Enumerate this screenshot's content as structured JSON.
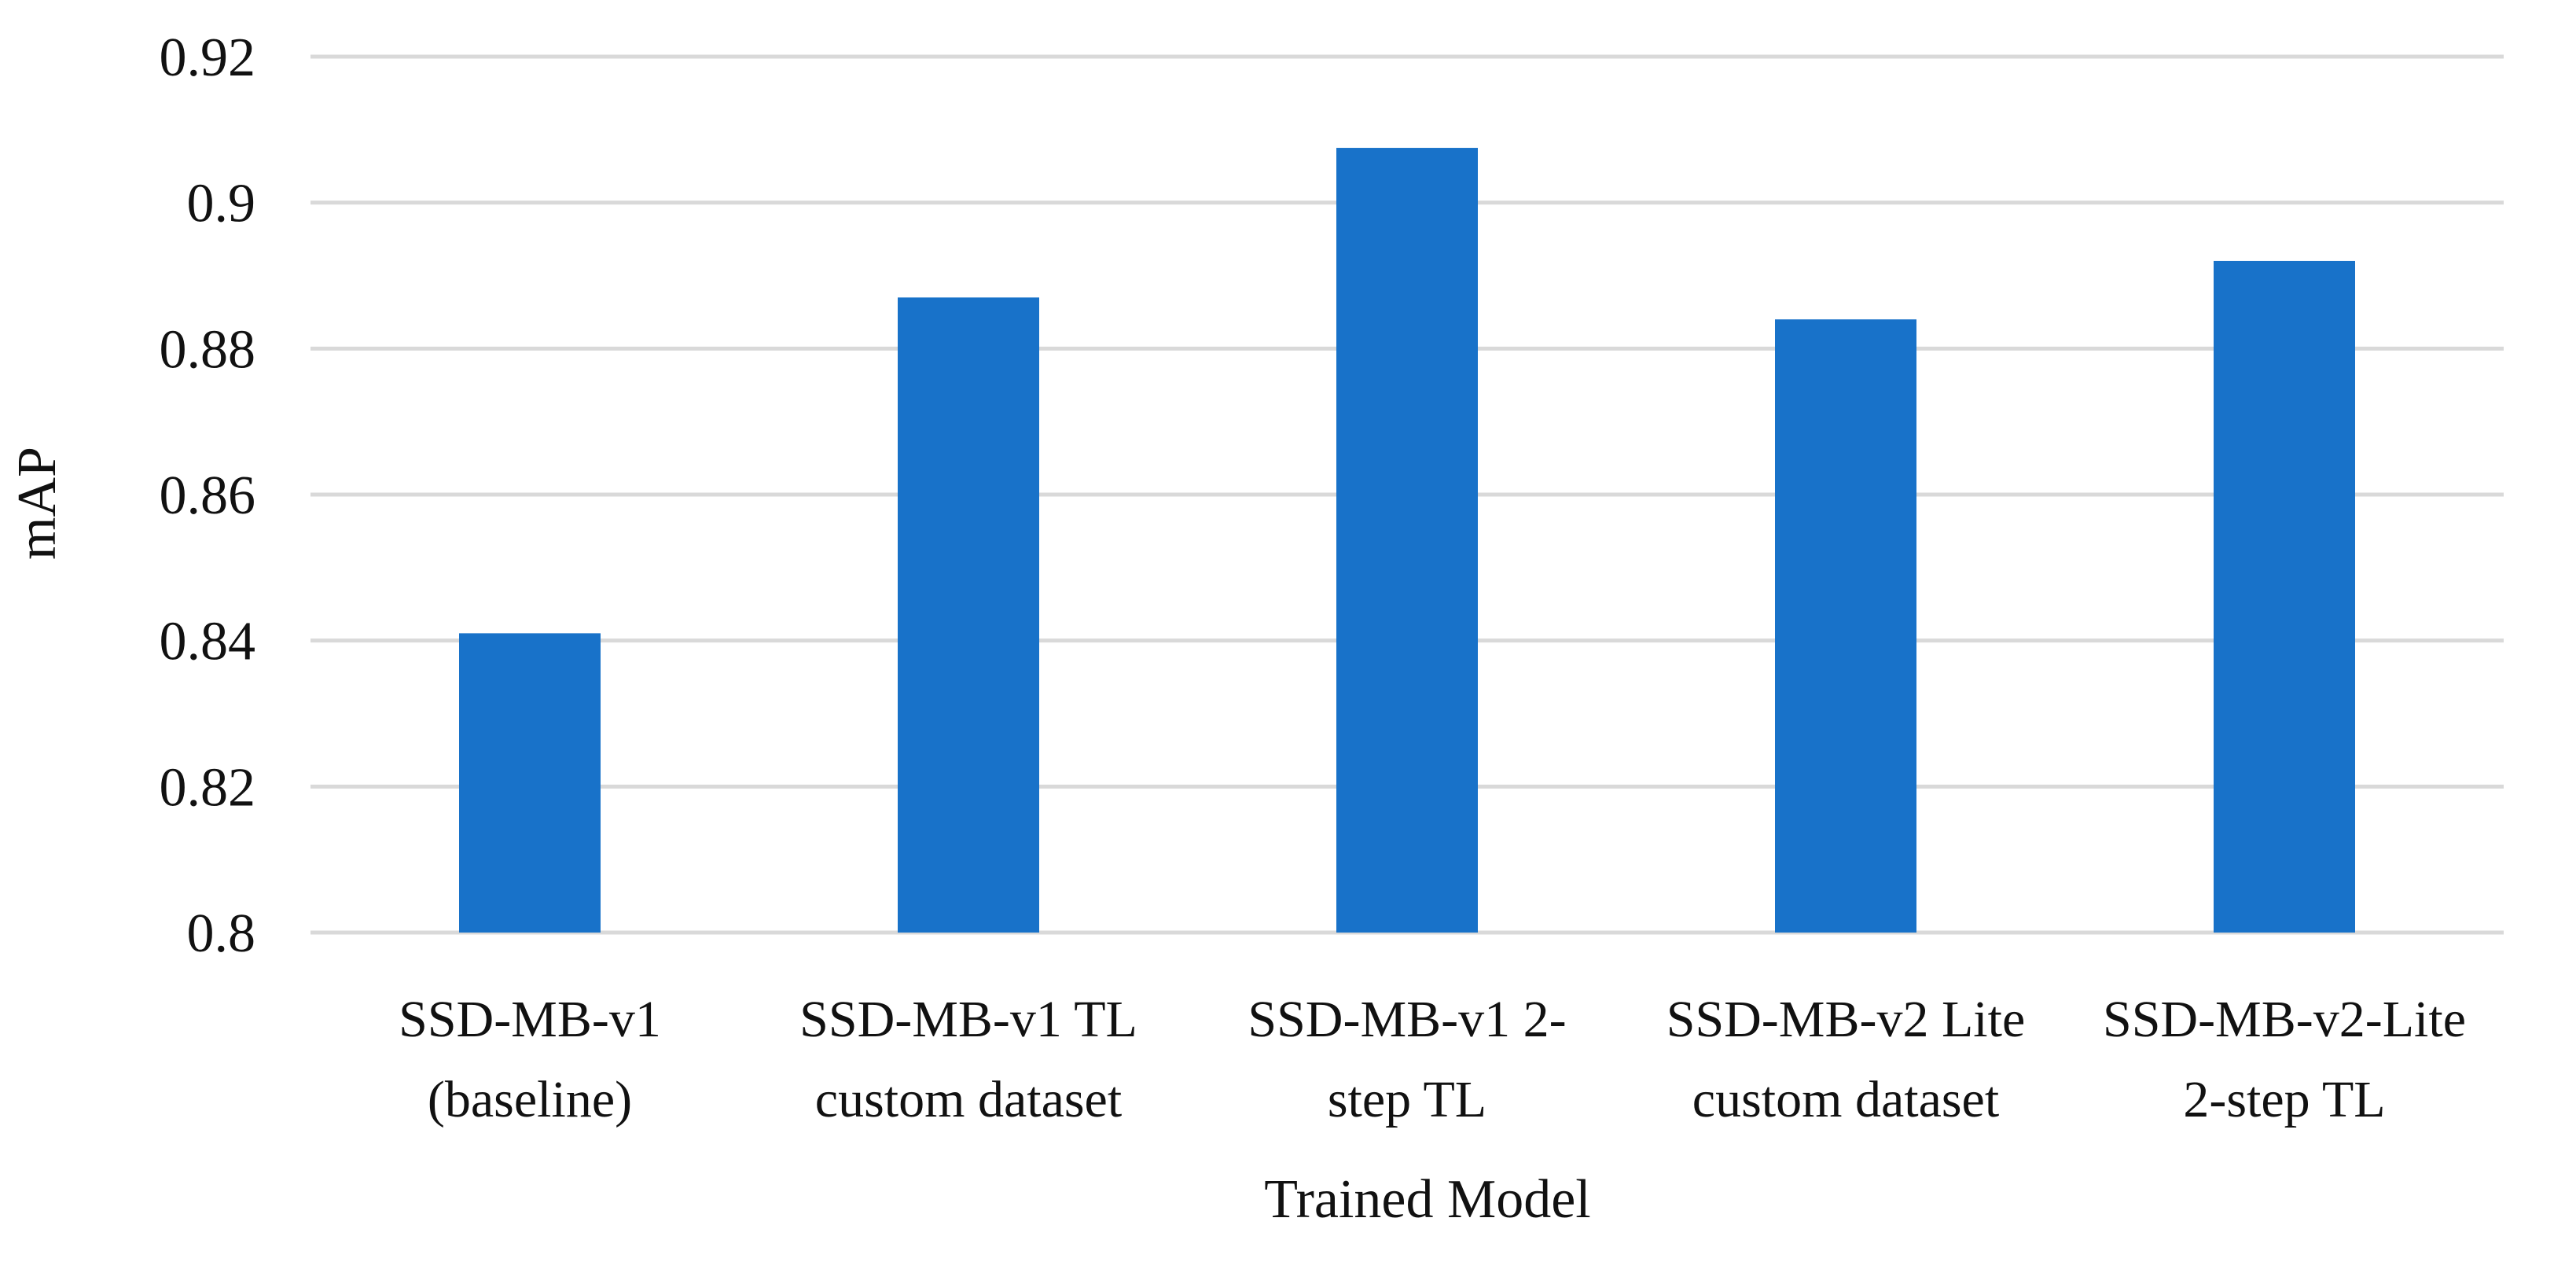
{
  "chart_data": {
    "type": "bar",
    "title": "",
    "xlabel": "Trained Model",
    "ylabel": "mAP",
    "ylim": [
      0.8,
      0.92
    ],
    "yticks": [
      "0.8",
      "0.82",
      "0.84",
      "0.86",
      "0.88",
      "0.9",
      "0.92"
    ],
    "grid": true,
    "categories": [
      [
        "SSD-MB-v1",
        "(baseline)"
      ],
      [
        "SSD-MB-v1 TL",
        "custom dataset"
      ],
      [
        "SSD-MB-v1 2-",
        "step TL"
      ],
      [
        "SSD-MB-v2 Lite",
        "custom dataset"
      ],
      [
        "SSD-MB-v2-Lite",
        "2-step TL"
      ]
    ],
    "values": [
      0.841,
      0.887,
      0.9075,
      0.884,
      0.892
    ],
    "bar_color": "#1872c9"
  }
}
